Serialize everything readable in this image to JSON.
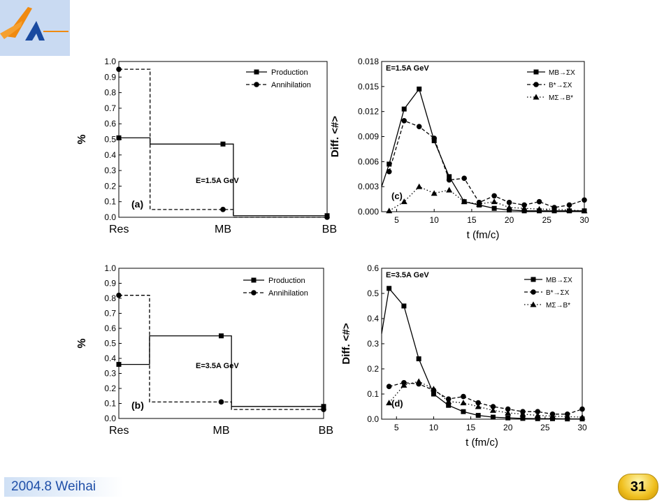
{
  "footer": {
    "location_text": "2004.8 Weihai"
  },
  "page_number": "31",
  "logo": {
    "icon": "institute-logo-icon",
    "colors": [
      "#f08a10",
      "#1a4aa0"
    ]
  },
  "chart_data": [
    {
      "id": "a",
      "type": "step",
      "panel_label": "(a)",
      "annotation": "E=1.5A GeV",
      "ylabel": "%",
      "categories": [
        "Res",
        "MB",
        "BB"
      ],
      "ylim": [
        0.0,
        1.0
      ],
      "yticks": [
        "0.0",
        "0.1",
        "0.2",
        "0.3",
        "0.4",
        "0.5",
        "0.6",
        "0.7",
        "0.8",
        "0.9",
        "1.0"
      ],
      "legend_position": "top-right",
      "series": [
        {
          "name": "Production",
          "style": "solid",
          "marker": "square",
          "values": [
            0.51,
            0.47,
            0.01
          ]
        },
        {
          "name": "Annihilation",
          "style": "dashed",
          "marker": "circle",
          "values": [
            0.95,
            0.05,
            0.0
          ]
        }
      ]
    },
    {
      "id": "b",
      "type": "step",
      "panel_label": "(b)",
      "annotation": "E=3.5A GeV",
      "ylabel": "%",
      "categories": [
        "Res",
        "MB",
        "BB"
      ],
      "ylim": [
        0.0,
        1.0
      ],
      "yticks": [
        "0.0",
        "0.1",
        "0.2",
        "0.3",
        "0.4",
        "0.5",
        "0.6",
        "0.7",
        "0.8",
        "0.9",
        "1.0"
      ],
      "legend_position": "top-right",
      "series": [
        {
          "name": "Production",
          "style": "solid",
          "marker": "square",
          "values": [
            0.36,
            0.55,
            0.08
          ]
        },
        {
          "name": "Annihilation",
          "style": "dashed",
          "marker": "circle",
          "values": [
            0.82,
            0.11,
            0.06
          ]
        }
      ]
    },
    {
      "id": "c",
      "type": "line",
      "panel_label": "(c)",
      "annotation": "E=1.5A GeV",
      "xlabel": "t (fm/c)",
      "ylabel": "Diff. <#>",
      "xlim": [
        3,
        30
      ],
      "ylim": [
        0.0,
        0.018
      ],
      "xticks": [
        5,
        10,
        15,
        20,
        25,
        30
      ],
      "yticks": [
        "0.000",
        "0.003",
        "0.006",
        "0.009",
        "0.012",
        "0.015",
        "0.018"
      ],
      "legend_position": "top-right",
      "series": [
        {
          "name": "MB→ΣX",
          "style": "solid",
          "marker": "square",
          "x": [
            3,
            4,
            6,
            8,
            10,
            12,
            14,
            16,
            18,
            20,
            22,
            24,
            26,
            28,
            30
          ],
          "y": [
            0.003,
            0.0057,
            0.0123,
            0.0147,
            0.0085,
            0.0042,
            0.0012,
            0.0008,
            0.0004,
            0.0002,
            0.0001,
            0.0001,
            0.0001,
            0.0001,
            0.0001
          ]
        },
        {
          "name": "B*→ΣX",
          "style": "dashed",
          "marker": "circle",
          "x": [
            4,
            6,
            8,
            10,
            12,
            14,
            16,
            18,
            20,
            22,
            24,
            26,
            28,
            30
          ],
          "y": [
            0.0048,
            0.0109,
            0.0102,
            0.0088,
            0.0038,
            0.004,
            0.0011,
            0.0019,
            0.0011,
            0.0008,
            0.0012,
            0.0005,
            0.0008,
            0.0014
          ]
        },
        {
          "name": "MΣ→B*",
          "style": "dotted",
          "marker": "triangle",
          "x": [
            4,
            6,
            8,
            10,
            12,
            14,
            16,
            18,
            20,
            22,
            24,
            26,
            28,
            30
          ],
          "y": [
            0.0001,
            0.0012,
            0.003,
            0.0022,
            0.0026,
            0.0012,
            0.0009,
            0.0012,
            0.0005,
            0.0004,
            0.0003,
            0.0003,
            0.0002,
            0.0001
          ]
        }
      ]
    },
    {
      "id": "d",
      "type": "line",
      "panel_label": "(d)",
      "annotation": "E=3.5A GeV",
      "xlabel": "t (fm/c)",
      "ylabel": "Diff. <#>",
      "xlim": [
        3,
        30
      ],
      "ylim": [
        0.0,
        0.6
      ],
      "xticks": [
        5,
        10,
        15,
        20,
        25,
        30
      ],
      "yticks": [
        "0.0",
        "0.1",
        "0.2",
        "0.3",
        "0.4",
        "0.5",
        "0.6"
      ],
      "legend_position": "top-right",
      "series": [
        {
          "name": "MB→ΣX",
          "style": "solid",
          "marker": "square",
          "x": [
            3,
            4,
            6,
            8,
            10,
            12,
            14,
            16,
            18,
            20,
            22,
            24,
            26,
            28,
            30
          ],
          "y": [
            0.34,
            0.52,
            0.45,
            0.24,
            0.1,
            0.055,
            0.03,
            0.015,
            0.008,
            0.005,
            0.003,
            0.002,
            0.002,
            0.001,
            0.001
          ]
        },
        {
          "name": "B*→ΣX",
          "style": "dashed",
          "marker": "circle",
          "x": [
            4,
            6,
            8,
            10,
            12,
            14,
            16,
            18,
            20,
            22,
            24,
            26,
            28,
            30
          ],
          "y": [
            0.13,
            0.145,
            0.14,
            0.115,
            0.08,
            0.09,
            0.065,
            0.05,
            0.04,
            0.03,
            0.03,
            0.02,
            0.02,
            0.04
          ]
        },
        {
          "name": "MΣ→B*",
          "style": "dotted",
          "marker": "triangle",
          "x": [
            4,
            6,
            8,
            10,
            12,
            14,
            16,
            18,
            20,
            22,
            24,
            26,
            28,
            30
          ],
          "y": [
            0.065,
            0.135,
            0.15,
            0.12,
            0.07,
            0.065,
            0.05,
            0.035,
            0.025,
            0.02,
            0.015,
            0.012,
            0.01,
            0.008
          ]
        }
      ]
    }
  ]
}
